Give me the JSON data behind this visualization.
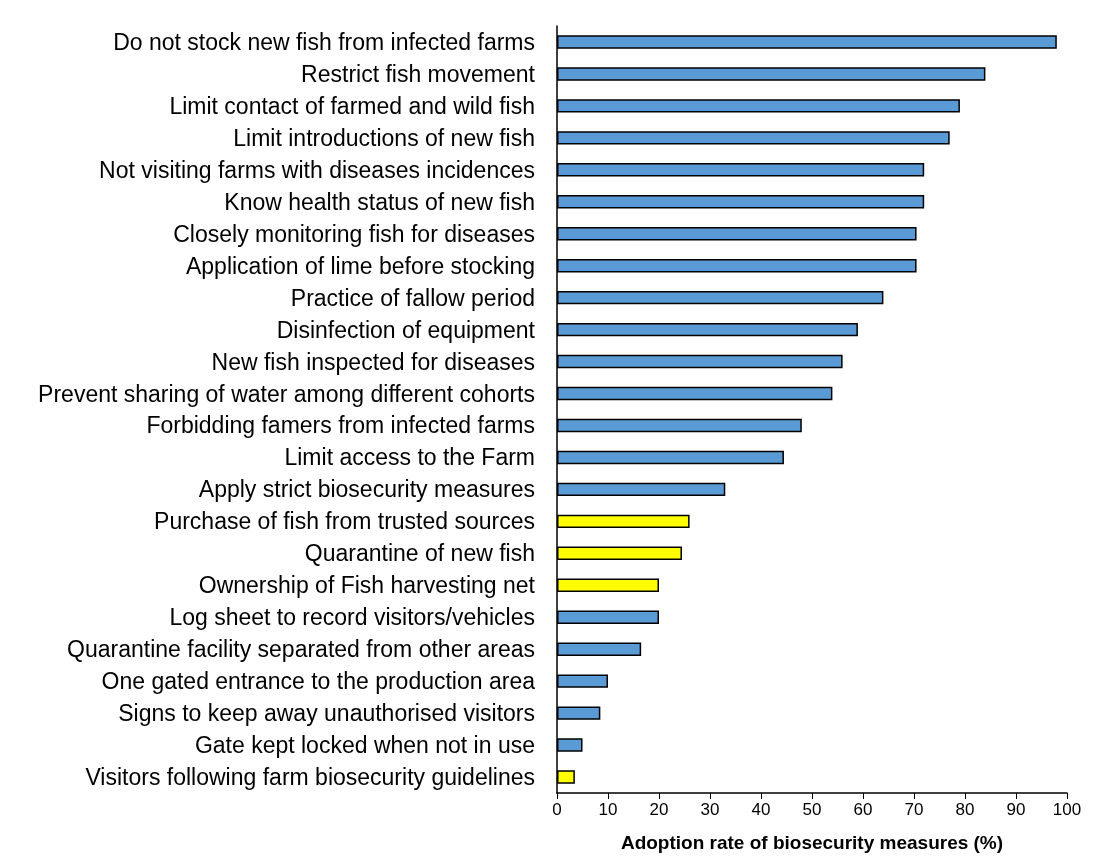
{
  "chart_data": {
    "type": "bar",
    "orientation": "horizontal",
    "xlabel": "Adoption rate of biosecurity measures (%)",
    "categories": [
      "Do not stock new fish from infected farms",
      "Restrict fish movement",
      "Limit contact of farmed and wild fish",
      "Limit introductions of new fish",
      "Not visiting farms with diseases incidences",
      "Know health status of new fish",
      "Closely monitoring fish for diseases",
      "Application of lime before stocking",
      "Practice of fallow period",
      "Disinfection of equipment",
      "New fish inspected for diseases",
      "Prevent sharing of water among different cohorts",
      "Forbidding famers from infected farms",
      "Limit access to the Farm",
      "Apply strict biosecurity measures",
      "Purchase of fish from trusted sources",
      "Quarantine of new fish",
      "Ownership of Fish harvesting net",
      "Log sheet to record visitors/vehicles",
      "Quarantine facility separated from other areas",
      "One gated entrance to the production area",
      "Signs to keep away unauthorised visitors",
      "Gate kept locked when not in use",
      "Visitors following farm biosecurity guidelines"
    ],
    "values": [
      98,
      84,
      79,
      77,
      72,
      72,
      70.5,
      70.5,
      64,
      59,
      56,
      54,
      48,
      44.5,
      33,
      26,
      24.5,
      20,
      20,
      16.5,
      10,
      8.5,
      5,
      3.5
    ],
    "colors": [
      "#5b9bd5",
      "#5b9bd5",
      "#5b9bd5",
      "#5b9bd5",
      "#5b9bd5",
      "#5b9bd5",
      "#5b9bd5",
      "#5b9bd5",
      "#5b9bd5",
      "#5b9bd5",
      "#5b9bd5",
      "#5b9bd5",
      "#5b9bd5",
      "#5b9bd5",
      "#5b9bd5",
      "#ffff00",
      "#ffff00",
      "#ffff00",
      "#5b9bd5",
      "#5b9bd5",
      "#5b9bd5",
      "#5b9bd5",
      "#5b9bd5",
      "#ffff00"
    ],
    "xlim": [
      0,
      100
    ],
    "xticks": [
      0,
      10,
      20,
      30,
      40,
      50,
      60,
      70,
      80,
      90,
      100
    ],
    "grid": false
  }
}
